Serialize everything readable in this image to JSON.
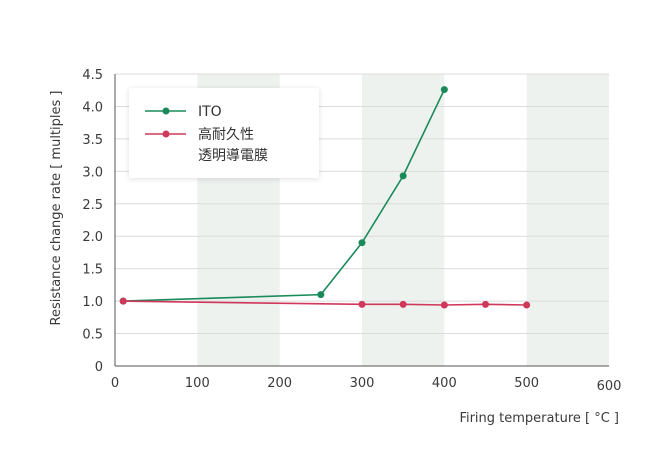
{
  "chart_data": {
    "type": "line",
    "xlabel": "Firing temperature [ °C ]",
    "ylabel": "Resistance change rate [ multiples ]",
    "xlim": [
      0,
      600
    ],
    "ylim": [
      0,
      4.5
    ],
    "x_ticks": [
      "0",
      "100",
      "200",
      "300",
      "400",
      "500",
      "600"
    ],
    "y_ticks": [
      "0",
      "0.5",
      "1.0",
      "1.5",
      "2.0",
      "2.5",
      "3.0",
      "3.5",
      "4.0",
      "4.5"
    ],
    "shaded_bands": [
      [
        100,
        200
      ],
      [
        300,
        400
      ],
      [
        500,
        600
      ]
    ],
    "grid": "horizontal",
    "legend_position": "top-left",
    "series": [
      {
        "name": "ITO",
        "color": "#1a8a5a",
        "x": [
          10,
          250,
          300,
          350,
          400
        ],
        "y": [
          1.0,
          1.1,
          1.9,
          2.93,
          4.26
        ]
      },
      {
        "name": "高耐久性\n透明導電膜",
        "name_lines": [
          "高耐久性",
          "透明導電膜"
        ],
        "color": "#d0385a",
        "x": [
          10,
          300,
          350,
          400,
          450,
          500
        ],
        "y": [
          1.0,
          0.95,
          0.95,
          0.94,
          0.95,
          0.94
        ]
      }
    ],
    "colors": {
      "band": "#eef2ef",
      "grid": "#dcdcdc",
      "axis": "#555555"
    }
  }
}
